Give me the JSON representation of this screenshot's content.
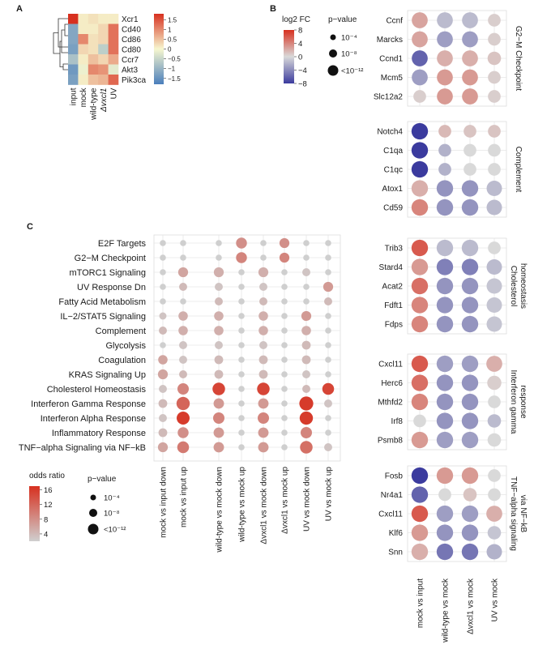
{
  "colors": {
    "div_pos": "#d7301f",
    "div_mid": "#d9d9d9",
    "div_neg": "#3b3b9e",
    "odds_low": "#cfcfcf",
    "odds_high": "#d7301f",
    "heat_low": "#4a7ebc",
    "heat_mid": "#f7f7cf",
    "heat_high": "#d7301f"
  },
  "chart_data": [
    {
      "panel": "A",
      "type": "heatmap",
      "columns": [
        "input",
        "mock",
        "wild-type",
        "Δvxcl1",
        "UV"
      ],
      "rows": [
        "Xcr1",
        "Cd40",
        "Cd86",
        "Cd80",
        "Ccr7",
        "Akt3",
        "Pik3ca"
      ],
      "values": [
        [
          1.8,
          0.1,
          0.2,
          0.1,
          0.1
        ],
        [
          -1.2,
          0.1,
          0.1,
          0.3,
          1.2
        ],
        [
          -1.2,
          1.0,
          0.2,
          0.3,
          1.2
        ],
        [
          -1.3,
          0.3,
          0.2,
          -0.6,
          1.2
        ],
        [
          -0.8,
          0.1,
          0.5,
          0.3,
          0.7
        ],
        [
          -1.4,
          -0.1,
          1.0,
          0.9,
          -0.2
        ],
        [
          -1.3,
          0.1,
          0.5,
          0.6,
          1.3
        ]
      ],
      "legend_ticks": [
        1.5,
        1,
        0.5,
        0,
        -0.5,
        -1,
        -1.5
      ],
      "legend_tick_labels": [
        "1.5",
        "1",
        "0.5",
        "0",
        "−0.5",
        "−1",
        "−1.5"
      ],
      "range": [
        -1.8,
        1.8
      ]
    },
    {
      "panel": "B",
      "type": "scatter",
      "legend": {
        "fc_title": "log2 FC",
        "fc_ticks": [
          8,
          4,
          0,
          -4,
          -8
        ],
        "fc_tick_labels": [
          "8",
          "4",
          "0",
          "−4",
          "−8"
        ],
        "p_title": "p−value",
        "p_labels": [
          "10⁻⁴",
          "10⁻⁸",
          "<10⁻¹²"
        ]
      },
      "columns": [
        "mock vs input",
        "wild-type vs mock",
        "Δvxcl1 vs mock",
        "UV vs mock"
      ],
      "groups": [
        {
          "label_lines": [
            "G2−M Checkpoint"
          ],
          "genes": [
            "Ccnf",
            "Marcks",
            "Ccnd1",
            "Mcm5",
            "Slc12a2"
          ],
          "fc": [
            [
              2.5,
              -1.5,
              -1.5,
              0.5
            ],
            [
              2.5,
              -3,
              -3,
              0.5
            ],
            [
              -6,
              2,
              2,
              1
            ],
            [
              -3,
              3,
              3,
              0.5
            ],
            [
              0.5,
              3,
              3,
              0.5
            ]
          ],
          "p": [
            [
              10,
              10,
              10,
              5
            ],
            [
              10,
              10,
              10,
              5
            ],
            [
              10,
              10,
              10,
              6
            ],
            [
              10,
              10,
              10,
              5
            ],
            [
              5,
              10,
              10,
              5
            ]
          ]
        },
        {
          "label_lines": [
            "Complement"
          ],
          "genes": [
            "Notch4",
            "C1qa",
            "C1qc",
            "Atox1",
            "Cd59"
          ],
          "fc": [
            [
              -8,
              1.5,
              1,
              1
            ],
            [
              -8,
              -2,
              0,
              0
            ],
            [
              -8,
              -2,
              0,
              0
            ],
            [
              2,
              -3.5,
              -3.5,
              -1.5
            ],
            [
              4,
              -3.5,
              -3.5,
              -1.5
            ]
          ],
          "p": [
            [
              11,
              5,
              5,
              5
            ],
            [
              11,
              5,
              5,
              5
            ],
            [
              11,
              5,
              5,
              5
            ],
            [
              11,
              11,
              11,
              9
            ],
            [
              11,
              11,
              11,
              9
            ]
          ]
        },
        {
          "label_lines": [
            "Cholesterol",
            "homeostasis"
          ],
          "genes": [
            "Trib3",
            "Stard4",
            "Acat2",
            "Fdft1",
            "Fdps"
          ],
          "fc": [
            [
              6,
              -1.5,
              -1.5,
              0
            ],
            [
              3,
              -4.5,
              -4.5,
              -1.5
            ],
            [
              5,
              -3.5,
              -3.5,
              -1
            ],
            [
              4,
              -3.5,
              -3.5,
              -1
            ],
            [
              4,
              -3.5,
              -3.5,
              -1
            ]
          ],
          "p": [
            [
              11,
              11,
              11,
              5
            ],
            [
              11,
              11,
              11,
              9
            ],
            [
              11,
              11,
              11,
              9
            ],
            [
              11,
              11,
              11,
              9
            ],
            [
              11,
              11,
              11,
              9
            ]
          ]
        },
        {
          "label_lines": [
            "Interferon gamma",
            "response"
          ],
          "genes": [
            "Cxcl11",
            "Herc6",
            "Mthfd2",
            "Irf8",
            "Psmb8"
          ],
          "fc": [
            [
              6,
              -3,
              -3,
              2
            ],
            [
              5,
              -3.5,
              -3.5,
              0.5
            ],
            [
              4,
              -3.5,
              -3.5,
              0
            ],
            [
              0,
              -3.5,
              -3.5,
              -1.5
            ],
            [
              3,
              -3,
              -3,
              0
            ]
          ],
          "p": [
            [
              11,
              11,
              11,
              10
            ],
            [
              11,
              11,
              11,
              7
            ],
            [
              11,
              11,
              11,
              5
            ],
            [
              5,
              11,
              11,
              6
            ],
            [
              11,
              11,
              11,
              6
            ]
          ]
        },
        {
          "label_lines": [
            "TNF−alpha signaling",
            "via NF−kB"
          ],
          "genes": [
            "Fosb",
            "Nr4a1",
            "Cxcl11",
            "Klf6",
            "Snn"
          ],
          "fc": [
            [
              -8,
              3,
              3,
              0
            ],
            [
              -6,
              0,
              1,
              0
            ],
            [
              6,
              -3,
              -3,
              2
            ],
            [
              3,
              -3.5,
              -3.5,
              -1
            ],
            [
              2,
              -5,
              -5,
              -2
            ]
          ],
          "p": [
            [
              11,
              11,
              11,
              5
            ],
            [
              11,
              5,
              6,
              5
            ],
            [
              11,
              11,
              11,
              10
            ],
            [
              11,
              11,
              11,
              6
            ],
            [
              11,
              11,
              11,
              9
            ]
          ]
        }
      ]
    },
    {
      "panel": "C",
      "type": "scatter",
      "legend": {
        "or_title": "odds ratio",
        "or_ticks": [
          16,
          12,
          8,
          4
        ],
        "or_range": [
          2,
          17
        ],
        "p_title": "p−value",
        "p_labels": [
          "10⁻⁴",
          "10⁻⁸",
          "<10⁻¹²"
        ]
      },
      "columns": [
        "mock vs input down",
        "mock vs input up",
        "wild-type vs mock down",
        "wild-type vs mock up",
        "Δvxcl1 vs mock down",
        "Δvxcl1 vs mock up",
        "UV vs mock down",
        "UV vs mock up"
      ],
      "rows": [
        "E2F Targets",
        "G2−M Checkpoint",
        "mTORC1 Signaling",
        "UV Response Dn",
        "Fatty Acid Metabolism",
        "IL−2/STAT5 Signaling",
        "Complement",
        "Glycolysis",
        "Coagulation",
        "KRAS Signaling Up",
        "Cholesterol Homeostasis",
        "Interferon Gamma Response",
        "Interferon Alpha Response",
        "Inflammatory Response",
        "TNF−alpha Signaling via NF−kB"
      ],
      "odds": [
        [
          2,
          2,
          2,
          8,
          2,
          8,
          2,
          2
        ],
        [
          2,
          2,
          2,
          9,
          2,
          9,
          2,
          2
        ],
        [
          2,
          6,
          5,
          2,
          5,
          2,
          3,
          2
        ],
        [
          2,
          4,
          3,
          2,
          3,
          2,
          2,
          7
        ],
        [
          2,
          2,
          4,
          2,
          4,
          2,
          2,
          4
        ],
        [
          3,
          5,
          5,
          2,
          5,
          2,
          7,
          2
        ],
        [
          4,
          5,
          5,
          2,
          5,
          2,
          5,
          2
        ],
        [
          2,
          3,
          3,
          2,
          3,
          2,
          4,
          2
        ],
        [
          6,
          3,
          4,
          2,
          4,
          2,
          4,
          2
        ],
        [
          6,
          4,
          4,
          2,
          4,
          2,
          3,
          2
        ],
        [
          3,
          9,
          15,
          2,
          15,
          2,
          4,
          15
        ],
        [
          4,
          12,
          7,
          2,
          7,
          2,
          16,
          3
        ],
        [
          3,
          16,
          9,
          2,
          9,
          2,
          16,
          2
        ],
        [
          4,
          8,
          7,
          2,
          7,
          2,
          9,
          2
        ],
        [
          6,
          10,
          7,
          2,
          7,
          2,
          11,
          3
        ]
      ],
      "p": [
        [
          1,
          1,
          1,
          8,
          1,
          6,
          1,
          1
        ],
        [
          1,
          1,
          1,
          8,
          1,
          6,
          1,
          1
        ],
        [
          1,
          6,
          6,
          1,
          6,
          1,
          3,
          1
        ],
        [
          1,
          3,
          3,
          1,
          3,
          1,
          1,
          6
        ],
        [
          1,
          1,
          3,
          1,
          3,
          1,
          1,
          3
        ],
        [
          2,
          5,
          5,
          1,
          5,
          1,
          6,
          1
        ],
        [
          3,
          5,
          5,
          1,
          5,
          1,
          5,
          1
        ],
        [
          1,
          3,
          3,
          1,
          3,
          1,
          4,
          1
        ],
        [
          5,
          3,
          4,
          1,
          4,
          1,
          4,
          1
        ],
        [
          6,
          3,
          4,
          1,
          4,
          1,
          3,
          1
        ],
        [
          3,
          9,
          12,
          1,
          12,
          1,
          3,
          10
        ],
        [
          4,
          14,
          7,
          1,
          7,
          1,
          16,
          3
        ],
        [
          3,
          13,
          9,
          1,
          9,
          1,
          14,
          1
        ],
        [
          4,
          8,
          7,
          1,
          7,
          1,
          9,
          1
        ],
        [
          6,
          10,
          7,
          1,
          7,
          1,
          12,
          3
        ]
      ]
    }
  ]
}
